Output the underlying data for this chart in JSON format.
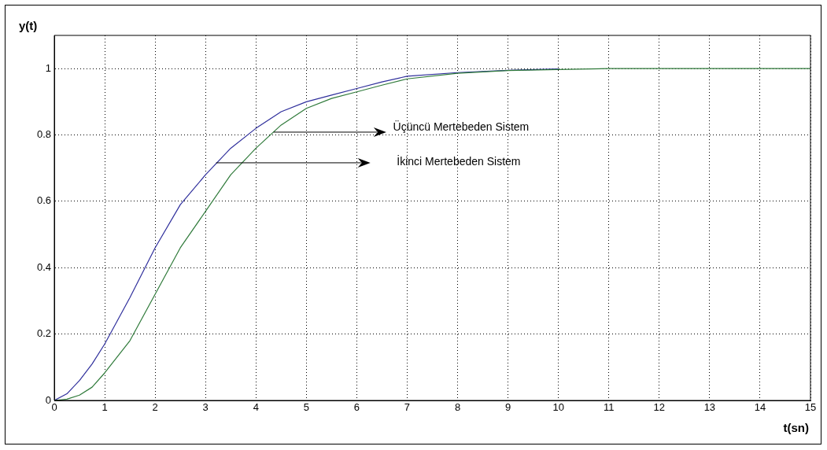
{
  "chart_data": {
    "type": "line",
    "xlabel": "t(sn)",
    "ylabel": "y(t)",
    "x": [
      0,
      0.25,
      0.5,
      0.75,
      1,
      1.5,
      2,
      2.5,
      3,
      3.5,
      4,
      4.5,
      5,
      5.5,
      6,
      6.5,
      7,
      8,
      9,
      10,
      11,
      12,
      13,
      14,
      15
    ],
    "series": [
      {
        "color": "#2f2f9c",
        "values": [
          0,
          0.02,
          0.06,
          0.11,
          0.17,
          0.31,
          0.46,
          0.59,
          0.68,
          0.76,
          0.82,
          0.87,
          0.9,
          0.92,
          0.94,
          0.96,
          0.977,
          0.988,
          0.995,
          0.999,
          null,
          null,
          null,
          null,
          null
        ]
      },
      {
        "color": "#2f7a3a",
        "values": [
          0,
          0.004,
          0.016,
          0.04,
          0.083,
          0.18,
          0.32,
          0.46,
          0.57,
          0.68,
          0.76,
          0.83,
          0.88,
          0.91,
          0.93,
          0.95,
          0.969,
          0.986,
          0.994,
          0.997,
          1,
          1,
          1,
          1,
          1
        ]
      }
    ],
    "annotations": [
      "Üçüncü Mertebeden Sistem",
      "İkinci Mertebeden Sistem"
    ],
    "xlim": [
      0,
      15
    ],
    "xticks": [
      0,
      1,
      2,
      3,
      4,
      5,
      6,
      7,
      8,
      9,
      10,
      11,
      12,
      13,
      14,
      15
    ],
    "ylim": [
      0,
      1.1
    ],
    "yticks": [
      0,
      0.2,
      0.4,
      0.6,
      0.8,
      1
    ],
    "grid": true,
    "legend": false,
    "marker": "none",
    "line_style": "solid"
  }
}
